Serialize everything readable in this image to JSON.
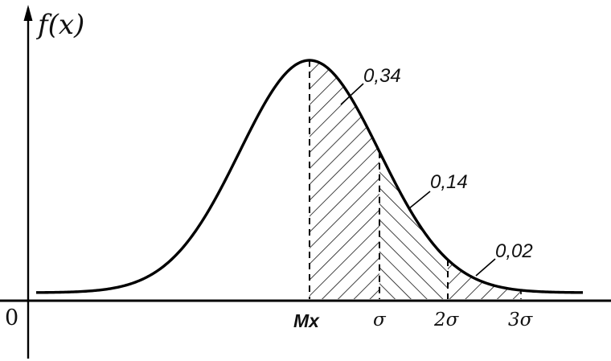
{
  "diagram": {
    "y_axis_label": "f(x)",
    "origin_label": "0",
    "mean_label": "Mx",
    "x_tick_labels": [
      "σ",
      "2σ",
      "3σ"
    ],
    "region_labels": [
      "0,34",
      "0,14",
      "0,02"
    ]
  }
}
